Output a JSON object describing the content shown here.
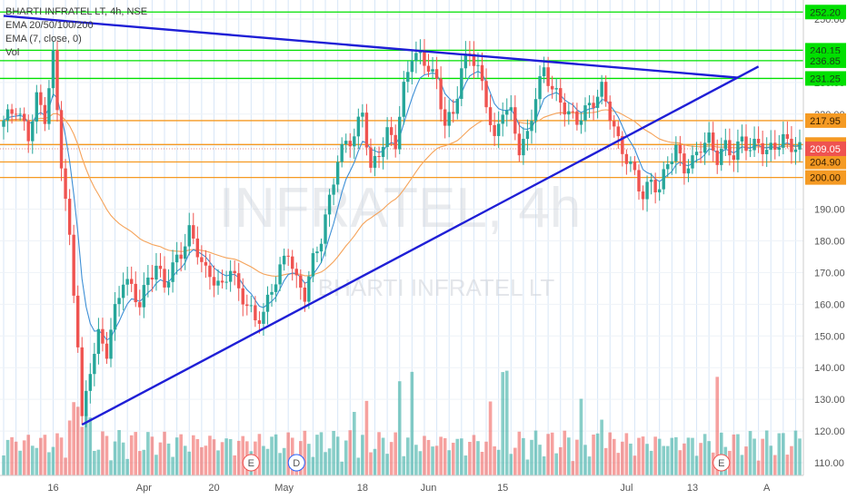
{
  "symbol_title": "BHARTI INFRATEL LT, 4h, NSE",
  "indicators": [
    "EMA 20/50/100/200",
    "EMA (7, close, 0)",
    "Vol"
  ],
  "watermark": {
    "big": "INFRATEL, 4h",
    "small": "BHARTI INFRATEL LT"
  },
  "colors": {
    "up": "#26a69a",
    "down": "#ef5350",
    "trendline": "#1f1fd6",
    "green_level": "#00e000",
    "orange_level": "#f59a23",
    "ema7": "#3d8fd6",
    "ema_slow": "#f5a35a",
    "grid": "#d7e6f7"
  },
  "chart_data": {
    "type": "candlestick",
    "y_axis": {
      "min": 106,
      "max": 256,
      "ticks": [
        110,
        120,
        130,
        140,
        150,
        160,
        170,
        180,
        190,
        200,
        210,
        220,
        230,
        240,
        250
      ]
    },
    "x_labels": [
      "16",
      "Apr",
      "20",
      "May",
      "18",
      "Jun",
      "15",
      "Jul",
      "13",
      "A"
    ],
    "x_label_index": [
      12,
      34,
      51,
      68,
      87,
      103,
      121,
      151,
      167,
      185
    ],
    "bar_count": 194,
    "green_levels": [
      {
        "value": 252.2,
        "label": "252.20"
      },
      {
        "value": 240.15,
        "label": "240.15"
      },
      {
        "value": 236.85,
        "label": "236.85"
      },
      {
        "value": 231.25,
        "label": "231.25"
      }
    ],
    "orange_levels": [
      {
        "value": 217.95,
        "label": "217.95"
      },
      {
        "value": 210.4,
        "label": "210.40"
      },
      {
        "value": 204.9,
        "label": "204.90"
      },
      {
        "value": 200.0,
        "label": "200.00"
      }
    ],
    "current_price": {
      "value": 209.05,
      "label": "209.05"
    },
    "trendlines": [
      {
        "name": "descending-resistance",
        "from": {
          "bar": 0,
          "price": 251
        },
        "to": {
          "bar": 178,
          "price": 231.5
        }
      },
      {
        "name": "ascending-support",
        "from": {
          "bar": 19,
          "price": 122
        },
        "to": {
          "bar": 183,
          "price": 235
        }
      }
    ],
    "event_markers": [
      {
        "label": "E",
        "bar": 60
      },
      {
        "label": "D",
        "bar": 71
      },
      {
        "label": "E",
        "bar": 174
      }
    ],
    "price_anchors": [
      [
        0,
        218
      ],
      [
        3,
        222
      ],
      [
        6,
        213
      ],
      [
        8,
        225
      ],
      [
        10,
        219
      ],
      [
        12,
        238
      ],
      [
        14,
        205
      ],
      [
        16,
        180
      ],
      [
        18,
        148
      ],
      [
        19,
        123
      ],
      [
        21,
        140
      ],
      [
        23,
        150
      ],
      [
        25,
        145
      ],
      [
        27,
        158
      ],
      [
        29,
        168
      ],
      [
        31,
        165
      ],
      [
        33,
        160
      ],
      [
        35,
        168
      ],
      [
        37,
        172
      ],
      [
        39,
        166
      ],
      [
        41,
        172
      ],
      [
        43,
        176
      ],
      [
        45,
        183
      ],
      [
        47,
        177
      ],
      [
        49,
        170
      ],
      [
        51,
        168
      ],
      [
        53,
        165
      ],
      [
        55,
        172
      ],
      [
        57,
        164
      ],
      [
        59,
        160
      ],
      [
        61,
        155
      ],
      [
        63,
        157
      ],
      [
        65,
        165
      ],
      [
        67,
        171
      ],
      [
        69,
        177
      ],
      [
        71,
        167
      ],
      [
        73,
        163
      ],
      [
        75,
        174
      ],
      [
        77,
        181
      ],
      [
        79,
        193
      ],
      [
        81,
        206
      ],
      [
        83,
        211
      ],
      [
        85,
        213
      ],
      [
        87,
        221
      ],
      [
        89,
        202
      ],
      [
        91,
        208
      ],
      [
        93,
        214
      ],
      [
        95,
        211
      ],
      [
        97,
        228
      ],
      [
        99,
        239
      ],
      [
        101,
        238
      ],
      [
        103,
        235
      ],
      [
        105,
        230
      ],
      [
        107,
        217
      ],
      [
        109,
        220
      ],
      [
        111,
        234
      ],
      [
        113,
        240
      ],
      [
        115,
        234
      ],
      [
        117,
        224
      ],
      [
        119,
        211
      ],
      [
        121,
        222
      ],
      [
        123,
        220
      ],
      [
        125,
        209
      ],
      [
        127,
        213
      ],
      [
        129,
        226
      ],
      [
        131,
        234
      ],
      [
        133,
        228
      ],
      [
        135,
        224
      ],
      [
        137,
        220
      ],
      [
        139,
        218
      ],
      [
        141,
        221
      ],
      [
        143,
        224
      ],
      [
        145,
        228
      ],
      [
        147,
        220
      ],
      [
        149,
        211
      ],
      [
        151,
        206
      ],
      [
        153,
        201
      ],
      [
        155,
        194
      ],
      [
        157,
        199
      ],
      [
        159,
        196
      ],
      [
        161,
        205
      ],
      [
        163,
        209
      ],
      [
        165,
        203
      ],
      [
        167,
        205
      ],
      [
        169,
        210
      ],
      [
        171,
        212
      ],
      [
        173,
        206
      ],
      [
        175,
        210
      ],
      [
        177,
        207
      ],
      [
        179,
        212
      ],
      [
        181,
        209
      ],
      [
        183,
        211
      ],
      [
        185,
        208
      ],
      [
        187,
        210
      ],
      [
        189,
        212
      ],
      [
        191,
        210
      ],
      [
        193,
        209
      ]
    ],
    "volume_bars": 150
  },
  "price_axis_color": "#444444"
}
